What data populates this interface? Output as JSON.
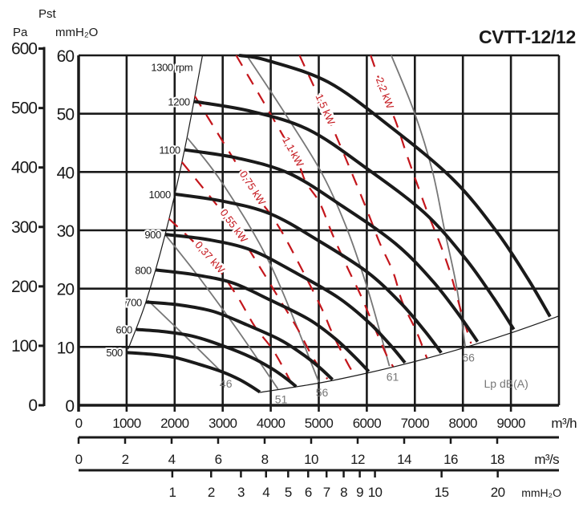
{
  "chart_data": {
    "type": "line",
    "title": "CVTT-12/12",
    "y_header": "Pst",
    "y_axis_pa": {
      "label": "Pa",
      "ticks": [
        0,
        100,
        200,
        300,
        400,
        500,
        600
      ]
    },
    "y_axis_mm": {
      "label": "mmH₂O",
      "ticks": [
        0,
        10,
        20,
        30,
        40,
        50,
        60
      ],
      "ylim": [
        0,
        60
      ]
    },
    "x_axis": {
      "label": "m³/h",
      "ticks": [
        0,
        1000,
        2000,
        3000,
        4000,
        5000,
        6000,
        7000,
        8000,
        9000
      ],
      "xlim": [
        0,
        10000
      ]
    },
    "x_axis_2": {
      "label": "m³/s",
      "ticks": [
        0,
        2,
        4,
        6,
        8,
        10,
        12,
        14,
        16,
        18
      ]
    },
    "x_axis_3": {
      "label": "mmH₂O",
      "ticks": [
        1,
        2,
        3,
        4,
        5,
        6,
        7,
        8,
        9,
        10,
        15,
        20
      ]
    },
    "grid": true,
    "colors": {
      "rpm": "#1a1a1a",
      "power": "#c4161c",
      "sound": "#777777",
      "boundary": "#1a1a1a"
    },
    "rpm_curves": [
      {
        "name": "500",
        "points": [
          [
            1000,
            9.05
          ],
          [
            1500,
            8.75
          ],
          [
            2000,
            8.2
          ],
          [
            2500,
            7.05
          ],
          [
            3000,
            5.7
          ],
          [
            3350,
            4.4
          ],
          [
            3600,
            3.2
          ],
          [
            3775,
            2.25
          ]
        ]
      },
      {
        "name": "600",
        "points": [
          [
            1200,
            13.0
          ],
          [
            1800,
            12.6
          ],
          [
            2400,
            11.8
          ],
          [
            3000,
            10.2
          ],
          [
            3600,
            8.2
          ],
          [
            4020,
            6.3
          ],
          [
            4320,
            4.6
          ],
          [
            4530,
            3.2
          ]
        ]
      },
      {
        "name": "700",
        "points": [
          [
            1400,
            17.7
          ],
          [
            2100,
            17.2
          ],
          [
            2800,
            16.1
          ],
          [
            3500,
            13.8
          ],
          [
            4200,
            11.2
          ],
          [
            4690,
            8.6
          ],
          [
            5040,
            6.3
          ],
          [
            5285,
            4.4
          ]
        ]
      },
      {
        "name": "800",
        "points": [
          [
            1600,
            23.2
          ],
          [
            2400,
            22.4
          ],
          [
            3200,
            21.0
          ],
          [
            4000,
            18.0
          ],
          [
            4800,
            14.7
          ],
          [
            5360,
            11.3
          ],
          [
            5760,
            8.2
          ],
          [
            6040,
            5.8
          ]
        ]
      },
      {
        "name": "900",
        "points": [
          [
            1800,
            29.3
          ],
          [
            2700,
            28.4
          ],
          [
            3600,
            26.6
          ],
          [
            4500,
            22.8
          ],
          [
            5400,
            18.5
          ],
          [
            6030,
            14.3
          ],
          [
            6480,
            10.4
          ],
          [
            6795,
            7.3
          ]
        ]
      },
      {
        "name": "1000",
        "points": [
          [
            2000,
            36.2
          ],
          [
            3000,
            35.0
          ],
          [
            4000,
            32.8
          ],
          [
            5000,
            28.2
          ],
          [
            6000,
            22.9
          ],
          [
            6700,
            17.6
          ],
          [
            7200,
            12.8
          ],
          [
            7550,
            9.0
          ]
        ]
      },
      {
        "name": "1100",
        "points": [
          [
            2200,
            43.8
          ],
          [
            3300,
            42.4
          ],
          [
            4400,
            39.7
          ],
          [
            5500,
            34.1
          ],
          [
            6600,
            27.7
          ],
          [
            7370,
            21.3
          ],
          [
            7920,
            15.5
          ],
          [
            8305,
            10.9
          ]
        ]
      },
      {
        "name": "1200",
        "points": [
          [
            2400,
            52.1
          ],
          [
            3600,
            50.4
          ],
          [
            4800,
            47.2
          ],
          [
            6000,
            40.6
          ],
          [
            7200,
            33.0
          ],
          [
            8040,
            25.3
          ],
          [
            8640,
            18.4
          ],
          [
            9060,
            13.0
          ]
        ]
      },
      {
        "name": "1300 rpm",
        "points": [
          [
            3340,
            60.0
          ],
          [
            3900,
            59.2
          ],
          [
            5200,
            55.4
          ],
          [
            6500,
            47.7
          ],
          [
            7800,
            38.7
          ],
          [
            8710,
            29.7
          ],
          [
            9360,
            21.6
          ],
          [
            9815,
            15.2
          ]
        ]
      }
    ],
    "power_lines": [
      {
        "name": "0,37 kW",
        "points": [
          [
            1880,
            32
          ],
          [
            2720,
            25.3
          ],
          [
            3270,
            19.1
          ],
          [
            3670,
            13.5
          ],
          [
            4060,
            9.3
          ],
          [
            4450,
            3.5
          ]
        ]
      },
      {
        "name": "0,55 kW",
        "points": [
          [
            2150,
            41.7
          ],
          [
            3220,
            30.7
          ],
          [
            3840,
            22.8
          ],
          [
            4180,
            18.2
          ],
          [
            4560,
            13.1
          ],
          [
            4870,
            8.3
          ],
          [
            5180,
            4.5
          ]
        ]
      },
      {
        "name": "0,75 kW",
        "points": [
          [
            2420,
            53
          ],
          [
            3610,
            37.2
          ],
          [
            4060,
            32
          ],
          [
            4400,
            27.2
          ],
          [
            5020,
            17.3
          ],
          [
            5290,
            12.2
          ],
          [
            5600,
            7.2
          ],
          [
            5750,
            5.1
          ]
        ]
      },
      {
        "name": "1,1 kW",
        "points": [
          [
            3280,
            60
          ],
          [
            4450,
            43.4
          ],
          [
            4730,
            38.3
          ],
          [
            5020,
            34.7
          ],
          [
            5290,
            29.2
          ],
          [
            5620,
            23.2
          ],
          [
            5860,
            19.1
          ],
          [
            6120,
            14.1
          ],
          [
            6410,
            8.6
          ],
          [
            6550,
            6.6
          ]
        ]
      },
      {
        "name": "1,5 kW",
        "points": [
          [
            4600,
            60
          ],
          [
            5120,
            50.7
          ],
          [
            5490,
            43.7
          ],
          [
            5770,
            38.2
          ],
          [
            6040,
            32.7
          ],
          [
            6270,
            27.8
          ],
          [
            6550,
            22.8
          ],
          [
            6740,
            17.7
          ],
          [
            7030,
            12.7
          ],
          [
            7250,
            8.1
          ]
        ]
      },
      {
        "name": "2,2 kW",
        "points": [
          [
            6080,
            60
          ],
          [
            6360,
            53.5
          ],
          [
            6610,
            48.5
          ],
          [
            6830,
            43
          ],
          [
            7050,
            37.9
          ],
          [
            7280,
            32.7
          ],
          [
            7530,
            27.6
          ],
          [
            7750,
            22.4
          ],
          [
            7970,
            15.9
          ],
          [
            8170,
            10.6
          ]
        ]
      }
    ],
    "sound_lines": [
      {
        "name": "46",
        "points": [
          [
            1440,
            18
          ],
          [
            2200,
            12
          ],
          [
            3000,
            5.5
          ]
        ]
      },
      {
        "name": "51",
        "points": [
          [
            1800,
            29.3
          ],
          [
            2500,
            22
          ],
          [
            3300,
            13
          ],
          [
            4150,
            2.8
          ]
        ]
      },
      {
        "name": "56",
        "points": [
          [
            2260,
            45.9
          ],
          [
            3000,
            38
          ],
          [
            4000,
            24
          ],
          [
            5000,
            4
          ]
        ]
      },
      {
        "name": "61",
        "points": [
          [
            3500,
            60
          ],
          [
            4300,
            50
          ],
          [
            5070,
            39.7
          ],
          [
            5600,
            30
          ],
          [
            6000,
            20.4
          ],
          [
            6280,
            12.4
          ],
          [
            6470,
            6.7
          ]
        ]
      },
      {
        "name": "66",
        "points": [
          [
            6510,
            60
          ],
          [
            7000,
            50
          ],
          [
            7370,
            40
          ],
          [
            7620,
            30
          ],
          [
            7870,
            20.3
          ],
          [
            8050,
            10
          ]
        ]
      }
    ],
    "sound_label": "Lp dB(A)",
    "boundaries": {
      "left": [
        [
          1030,
          9.6
        ],
        [
          1400,
          17.7
        ],
        [
          1800,
          29.2
        ],
        [
          2200,
          43.6
        ],
        [
          2580,
          60
        ]
      ],
      "bottom": [
        [
          3775,
          2.2
        ],
        [
          5000,
          3.8
        ],
        [
          6000,
          5.5
        ],
        [
          7000,
          7.5
        ],
        [
          8000,
          9.8
        ],
        [
          9000,
          12.4
        ],
        [
          10000,
          15.3
        ]
      ]
    }
  }
}
